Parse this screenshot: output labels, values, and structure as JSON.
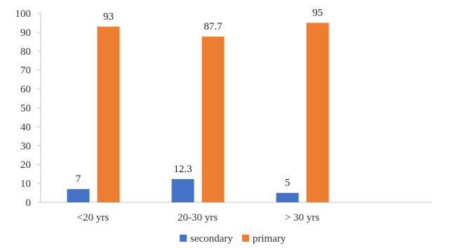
{
  "chart_data": {
    "type": "bar",
    "title": "",
    "xlabel": "",
    "ylabel": "",
    "categories": [
      "<20 yrs",
      "20-30 yrs",
      "> 30 yrs"
    ],
    "series": [
      {
        "name": "secondary",
        "color": "#4472C4",
        "values": [
          7,
          12.3,
          5
        ],
        "labels": [
          "7",
          "12.3",
          "5"
        ]
      },
      {
        "name": "primary",
        "color": "#ED7D31",
        "values": [
          93,
          87.7,
          95
        ],
        "labels": [
          "93",
          "87.7",
          "95"
        ]
      }
    ],
    "ylim": [
      0,
      100
    ],
    "yticks": [
      "0",
      "10",
      "20",
      "30",
      "40",
      "50",
      "60",
      "70",
      "80",
      "90",
      "100"
    ],
    "grid": false,
    "legend_position": "bottom"
  }
}
